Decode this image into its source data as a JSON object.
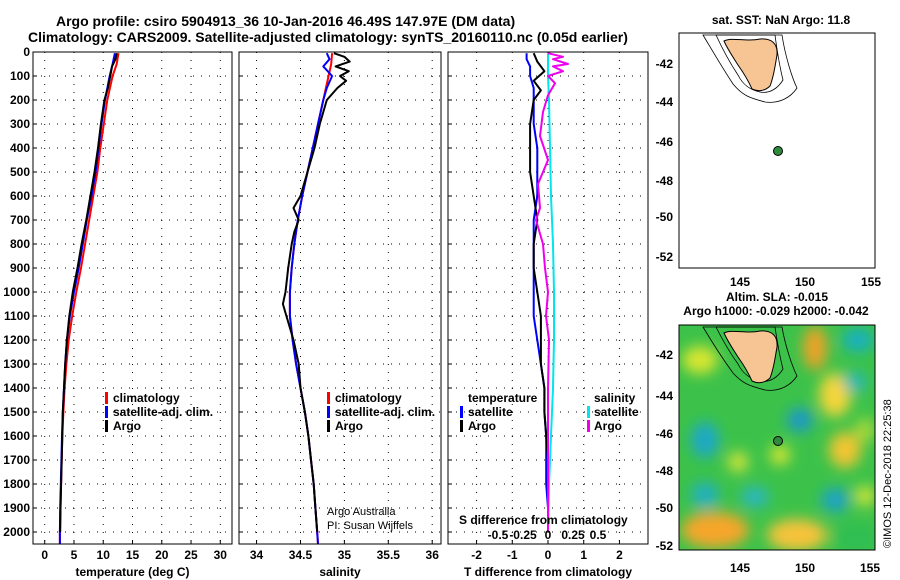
{
  "titles": {
    "line1": "Argo profile: csiro 5904913_36 10-Jan-2016 46.49S 147.97E (DM data)",
    "line2": "Climatology: CARS2009. Satellite-adjusted climatology: synTS_20160110.nc (0.05d earlier)"
  },
  "colors": {
    "climatology": "#ff0000",
    "satellite": "#0000ff",
    "argo": "#000000",
    "sat_salinity": "#00e5ee",
    "argo_salinity": "#ee00ee"
  },
  "chart_data": [
    {
      "type": "line",
      "id": "temperature",
      "xlabel": "temperature (deg C)",
      "ylabel": "",
      "xlim": [
        -2,
        32
      ],
      "ylim": [
        2050,
        0
      ],
      "x_ticks": [
        0,
        5,
        10,
        15,
        20,
        25,
        30
      ],
      "x_tick_labels": [
        "0",
        "5",
        "10",
        "15",
        "20",
        "25",
        "30"
      ],
      "y_ticks": [
        0,
        100,
        200,
        300,
        400,
        500,
        600,
        700,
        800,
        900,
        1000,
        1100,
        1200,
        1300,
        1400,
        1500,
        1600,
        1700,
        1800,
        1900,
        2000
      ],
      "y_tick_labels": [
        "0",
        "100",
        "200",
        "300",
        "400",
        "500",
        "600",
        "700",
        "800",
        "900",
        "1000",
        "1100",
        "1200",
        "1300",
        "1400",
        "1500",
        "1600",
        "1700",
        "1800",
        "1900",
        "2000"
      ],
      "legend": [
        "climatology",
        "satellite-adj. clim.",
        "Argo"
      ],
      "legend_position": "lower-right",
      "series": [
        {
          "name": "climatology",
          "color": "#ff0000",
          "depth": [
            5,
            50,
            100,
            200,
            300,
            400,
            500,
            600,
            700,
            800,
            900,
            1000,
            1100,
            1200,
            1300,
            1400,
            1500,
            1600,
            1700,
            1800,
            1900,
            2000,
            2050
          ],
          "values": [
            12.6,
            12.3,
            11.6,
            10.7,
            10.1,
            9.5,
            9.0,
            8.3,
            7.6,
            6.9,
            6.2,
            5.4,
            4.7,
            4.1,
            3.7,
            3.4,
            3.2,
            3.0,
            2.9,
            2.8,
            2.7,
            2.6,
            2.6
          ]
        },
        {
          "name": "satellite-adj. clim.",
          "color": "#0000ff",
          "depth": [
            5,
            50,
            100,
            200,
            300,
            400,
            500,
            600,
            700,
            800,
            900,
            1000,
            1100,
            1200,
            1300,
            1400,
            1500,
            1600,
            1700,
            1800,
            1900,
            2000,
            2050
          ],
          "values": [
            12.0,
            11.6,
            11.1,
            10.3,
            9.7,
            9.2,
            8.7,
            8.0,
            7.2,
            6.5,
            5.8,
            5.0,
            4.3,
            3.8,
            3.5,
            3.3,
            3.1,
            2.95,
            2.85,
            2.75,
            2.65,
            2.6,
            2.6
          ]
        },
        {
          "name": "Argo",
          "color": "#000000",
          "depth": [
            5,
            30,
            60,
            100,
            150,
            200,
            300,
            400,
            500,
            600,
            700,
            800,
            900,
            1000,
            1100,
            1200,
            1300,
            1400,
            1500,
            1600,
            1700,
            1800,
            1900,
            2000
          ],
          "values": [
            12.3,
            12.1,
            11.5,
            11.2,
            10.8,
            10.2,
            9.6,
            9.1,
            8.5,
            7.8,
            7.1,
            6.3,
            5.6,
            4.8,
            4.2,
            3.8,
            3.5,
            3.3,
            3.1,
            3.0,
            2.9,
            2.8,
            2.7,
            2.65
          ]
        }
      ]
    },
    {
      "type": "line",
      "id": "salinity",
      "xlabel": "salinity",
      "xlim": [
        33.8,
        36.1
      ],
      "ylim": [
        2050,
        0
      ],
      "x_ticks": [
        34,
        34.5,
        35,
        35.5,
        36
      ],
      "x_tick_labels": [
        "34",
        "34.5",
        "35",
        "35.5",
        "36"
      ],
      "legend": [
        "climatology",
        "satellite-adj. clim.",
        "Argo"
      ],
      "legend_position": "lower-right",
      "annotation": [
        "Argo Australia",
        "PI: Susan Wijffels"
      ],
      "series": [
        {
          "name": "climatology",
          "color": "#ff0000",
          "depth": [
            5,
            50,
            100,
            150,
            200,
            300,
            400,
            500,
            600,
            700,
            800,
            900,
            1000,
            1100,
            1200,
            1300,
            1400,
            1500,
            1600,
            1700,
            1800,
            1900,
            2000,
            2050
          ],
          "values": [
            34.86,
            34.85,
            34.82,
            34.79,
            34.76,
            34.7,
            34.64,
            34.58,
            34.52,
            34.47,
            34.43,
            34.4,
            34.38,
            34.38,
            34.41,
            34.45,
            34.5,
            34.55,
            34.59,
            34.62,
            34.65,
            34.67,
            34.69,
            34.7
          ]
        },
        {
          "name": "satellite-adj. clim.",
          "color": "#0000ff",
          "depth": [
            5,
            30,
            60,
            100,
            150,
            200,
            300,
            400,
            500,
            600,
            700,
            800,
            900,
            1000,
            1100,
            1200,
            1300,
            1400,
            1500,
            1600,
            1700,
            1800,
            1900,
            2000,
            2050
          ],
          "values": [
            34.8,
            34.83,
            34.76,
            34.86,
            34.8,
            34.76,
            34.7,
            34.64,
            34.58,
            34.52,
            34.47,
            34.43,
            34.4,
            34.38,
            34.38,
            34.41,
            34.45,
            34.5,
            34.55,
            34.59,
            34.62,
            34.65,
            34.67,
            34.69,
            34.7
          ]
        },
        {
          "name": "Argo",
          "color": "#000000",
          "depth": [
            5,
            20,
            40,
            60,
            80,
            100,
            120,
            150,
            200,
            300,
            400,
            500,
            600,
            650,
            700,
            750,
            800,
            900,
            1000,
            1050,
            1100,
            1200,
            1300,
            1400,
            1500,
            1600,
            1700,
            1800,
            1900,
            2000
          ],
          "values": [
            34.88,
            35.0,
            35.06,
            34.9,
            35.05,
            34.95,
            35.02,
            34.92,
            34.8,
            34.72,
            34.66,
            34.58,
            34.5,
            34.42,
            34.48,
            34.43,
            34.4,
            34.36,
            34.33,
            34.3,
            34.34,
            34.42,
            34.48,
            34.5,
            34.55,
            34.59,
            34.62,
            34.65,
            34.67,
            34.69
          ]
        }
      ]
    },
    {
      "type": "line",
      "id": "difference",
      "xlabel": "T difference from climatology",
      "xlim": [
        -2.8,
        2.8
      ],
      "ylim": [
        2050,
        0
      ],
      "x_ticks": [
        -2,
        -1,
        0,
        1,
        2
      ],
      "x_tick_labels": [
        "-2",
        "-1",
        "0",
        "1",
        "2"
      ],
      "inner_label": "S difference from climatology",
      "s_ticks": [
        -0.5,
        -0.25,
        0,
        0.25,
        0.5
      ],
      "s_tick_labels": [
        "-0.5",
        "-0.25",
        "0",
        "0.25",
        "0.5"
      ],
      "legend_left_title": "temperature",
      "legend_left": [
        "satellite",
        "Argo"
      ],
      "legend_right_title": "salinity",
      "legend_right": [
        "satellite",
        "Argo"
      ],
      "series": [
        {
          "name": "temperature satellite",
          "color": "#0000ff",
          "depth": [
            5,
            30,
            60,
            100,
            150,
            200,
            300,
            400,
            500,
            600,
            700,
            800,
            900,
            1000,
            1100,
            1200,
            1300,
            1400,
            1500,
            1600,
            1700,
            1800,
            1900,
            2000
          ],
          "values": [
            -0.6,
            -0.6,
            -0.5,
            -0.5,
            -0.4,
            -0.4,
            -0.4,
            -0.3,
            -0.3,
            -0.3,
            -0.4,
            -0.4,
            -0.4,
            -0.4,
            -0.4,
            -0.3,
            -0.2,
            -0.1,
            -0.1,
            -0.05,
            -0.05,
            -0.05,
            0,
            0
          ]
        },
        {
          "name": "temperature Argo",
          "color": "#000000",
          "depth": [
            5,
            40,
            80,
            120,
            160,
            200,
            300,
            400,
            500,
            600,
            700,
            800,
            900,
            1000,
            1100,
            1200,
            1300,
            1400,
            1500,
            1600,
            1700,
            1800,
            1900,
            2000
          ],
          "values": [
            -0.4,
            -0.3,
            -0.1,
            -0.4,
            -0.2,
            -0.4,
            -0.5,
            -0.5,
            -0.5,
            -0.4,
            -0.3,
            -0.4,
            -0.4,
            -0.3,
            -0.2,
            -0.2,
            -0.2,
            -0.1,
            -0.1,
            -0.05,
            0,
            0,
            0,
            0
          ]
        },
        {
          "name": "salinity satellite",
          "color": "#00e5ee",
          "depth": [
            5,
            100,
            200,
            400,
            600,
            800,
            1000,
            1200,
            1400,
            1600,
            1800,
            2000
          ],
          "values": [
            0.0,
            0.0,
            0.01,
            0.02,
            0.03,
            0.05,
            0.06,
            0.06,
            0.05,
            0.03,
            0.01,
            0.0
          ]
        },
        {
          "name": "salinity Argo",
          "color": "#ee00ee",
          "depth": [
            5,
            20,
            30,
            50,
            60,
            80,
            100,
            130,
            180,
            250,
            350,
            450,
            550,
            650,
            700,
            800,
            900,
            1000,
            1100,
            1200,
            1400,
            1600,
            1800,
            2000
          ],
          "values": [
            0.0,
            0.15,
            0.05,
            0.2,
            0.05,
            0.15,
            0.0,
            0.07,
            0.0,
            -0.05,
            -0.08,
            0.0,
            -0.1,
            -0.08,
            -0.12,
            -0.05,
            -0.03,
            0.0,
            -0.02,
            0.01,
            0.0,
            0.0,
            0.0,
            0.0
          ]
        }
      ]
    }
  ],
  "map_sst": {
    "title": "sat. SST: NaN Argo: 11.8",
    "lat_labels": [
      "-42",
      "-44",
      "-46",
      "-48",
      "-50",
      "-52"
    ],
    "lon_labels": [
      "145",
      "150",
      "155"
    ],
    "argo_point": {
      "lon": 147.97,
      "lat": -46.49
    }
  },
  "map_sla": {
    "title1": "Altim. SLA: -0.015",
    "title2": "Argo h1000: -0.029 h2000: -0.042",
    "lat_labels": [
      "-42",
      "-44",
      "-46",
      "-48",
      "-50",
      "-52"
    ],
    "lon_labels": [
      "145",
      "150",
      "155"
    ],
    "argo_point": {
      "lon": 147.97,
      "lat": -46.49
    }
  },
  "credit": "©IMOS 12-Dec-2018 22:25:38"
}
